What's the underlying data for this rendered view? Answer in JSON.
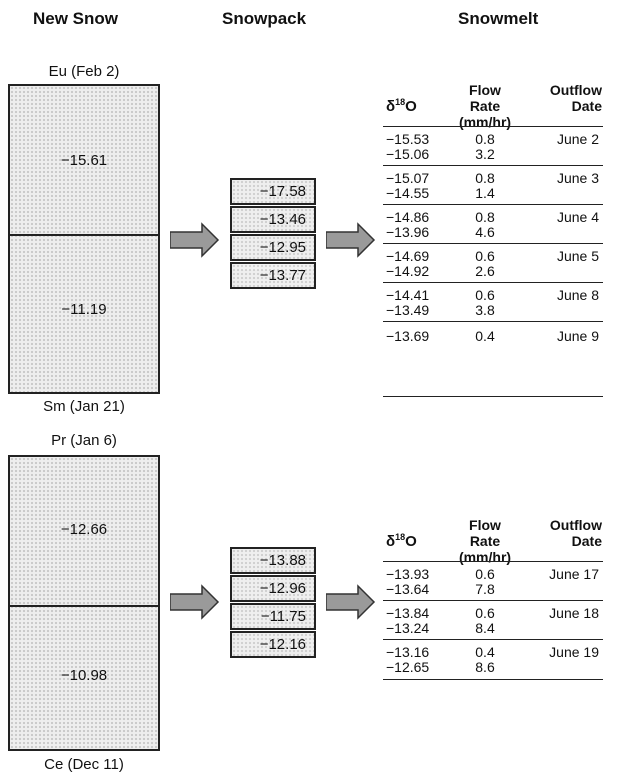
{
  "headers": {
    "new_snow": "New Snow",
    "snowpack": "Snowpack",
    "snowmelt": "Snowmelt"
  },
  "table_headers": {
    "delta": "δ18O",
    "flow_rate_1": "Flow Rate",
    "flow_rate_2": "(mm/hr)",
    "outflow_1": "Outflow",
    "outflow_2": "Date"
  },
  "experiment1": {
    "top_label": "Eu (Feb 2)",
    "top_value": "−15.61",
    "bottom_value": "−11.19",
    "bottom_label": "Sm (Jan 21)",
    "snowpack": [
      "−17.58",
      "−13.46",
      "−12.95",
      "−13.77"
    ],
    "rows": [
      {
        "d1": "−15.53",
        "f1": "0.8",
        "d2": "−15.06",
        "f2": "3.2",
        "date": "June 2"
      },
      {
        "d1": "−15.07",
        "f1": "0.8",
        "d2": "−14.55",
        "f2": "1.4",
        "date": "June 3"
      },
      {
        "d1": "−14.86",
        "f1": "0.8",
        "d2": "−13.96",
        "f2": "4.6",
        "date": "June 4"
      },
      {
        "d1": "−14.69",
        "f1": "0.6",
        "d2": "−14.92",
        "f2": "2.6",
        "date": "June 5"
      },
      {
        "d1": "−14.41",
        "f1": "0.6",
        "d2": "−13.49",
        "f2": "3.8",
        "date": "June 8"
      },
      {
        "d1": "−13.69",
        "f1": "0.4",
        "d2": "",
        "f2": "",
        "date": "June 9"
      }
    ]
  },
  "experiment2": {
    "top_label": "Pr (Jan 6)",
    "top_value": "−12.66",
    "bottom_value": "−10.98",
    "bottom_label": "Ce (Dec 11)",
    "snowpack": [
      "−13.88",
      "−12.96",
      "−11.75",
      "−12.16"
    ],
    "rows": [
      {
        "d1": "−13.93",
        "f1": "0.6",
        "d2": "−13.64",
        "f2": "7.8",
        "date": "June 17"
      },
      {
        "d1": "−13.84",
        "f1": "0.6",
        "d2": "−13.24",
        "f2": "8.4",
        "date": "June 18"
      },
      {
        "d1": "−13.16",
        "f1": "0.4",
        "d2": "−12.65",
        "f2": "8.6",
        "date": "June 19"
      }
    ]
  },
  "colors": {
    "arrow_fill": "#9a9a9a",
    "stipple": "#c9c9c9"
  }
}
